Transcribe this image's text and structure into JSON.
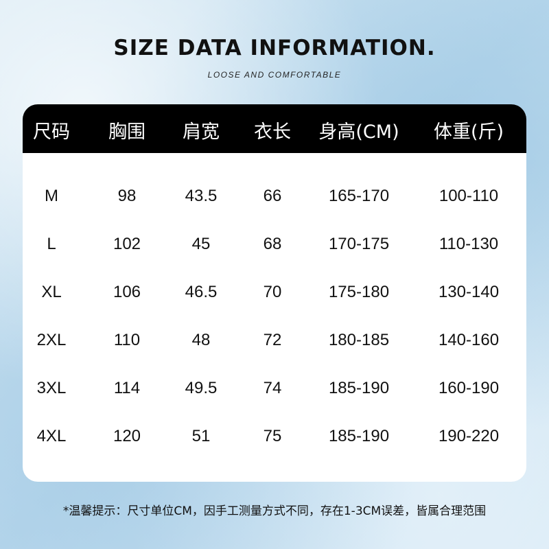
{
  "title": "SIZE DATA INFORMATION.",
  "subtitle": "LOOSE AND COMFORTABLE",
  "table": {
    "headers": [
      "尺码",
      "胸围",
      "肩宽",
      "衣长",
      "身高(CM)",
      "体重(斤)"
    ],
    "rows": [
      [
        "M",
        "98",
        "43.5",
        "66",
        "165-170",
        "100-110"
      ],
      [
        "L",
        "102",
        "45",
        "68",
        "170-175",
        "110-130"
      ],
      [
        "XL",
        "106",
        "46.5",
        "70",
        "175-180",
        "130-140"
      ],
      [
        "2XL",
        "110",
        "48",
        "72",
        "180-185",
        "140-160"
      ],
      [
        "3XL",
        "114",
        "49.5",
        "74",
        "185-190",
        "160-190"
      ],
      [
        "4XL",
        "120",
        "51",
        "75",
        "185-190",
        "190-220"
      ]
    ]
  },
  "note": "*温馨提示：尺寸单位CM，因手工测量方式不同，存在1-3CM误差，皆属合理范围",
  "colors": {
    "header_bg": "#000000",
    "header_text": "#ffffff",
    "card_bg": "#ffffff",
    "background": "#c5e0f0"
  }
}
